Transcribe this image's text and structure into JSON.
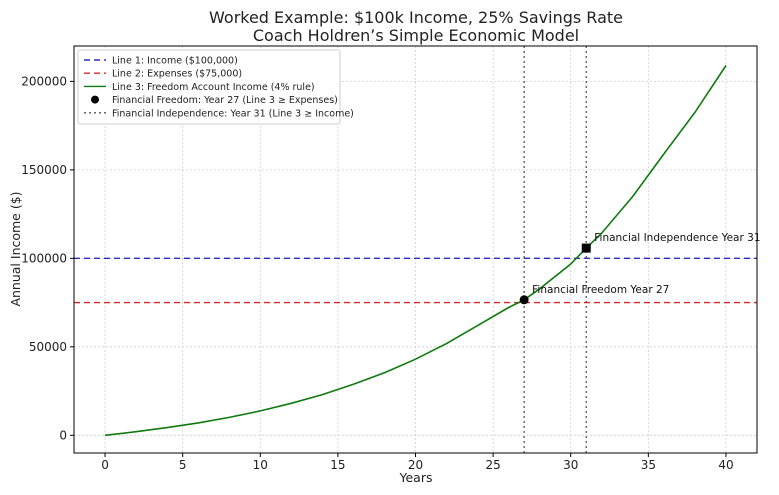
{
  "chart_data": {
    "type": "line",
    "title": "Worked Example: $100k Income, 25% Savings Rate",
    "subtitle": "Coach Holdren’s Simple Economic Model",
    "xlabel": "Years",
    "ylabel": "Annual Income ($)",
    "xlim": [
      -2,
      42
    ],
    "ylim": [
      -10000,
      220000
    ],
    "xticks": [
      0,
      5,
      10,
      15,
      20,
      25,
      30,
      35,
      40
    ],
    "yticks": [
      0,
      50000,
      100000,
      150000,
      200000
    ],
    "grid": true,
    "legend_position": "top-left",
    "series": [
      {
        "name": "Line 1: Income ($100,000)",
        "kind": "hline",
        "y": 100000,
        "color": "#2b2bc8",
        "style": "dashed"
      },
      {
        "name": "Line 2: Expenses ($75,000)",
        "kind": "hline",
        "y": 75000,
        "color": "#d62728",
        "style": "dashed"
      },
      {
        "name": "Line 3: Freedom Account Income (4% rule)",
        "kind": "line",
        "color": "#0f7a0f",
        "style": "solid",
        "x": [
          0,
          2,
          4,
          6,
          8,
          10,
          12,
          14,
          16,
          18,
          20,
          22,
          24,
          26,
          27,
          28,
          30,
          31,
          32,
          34,
          36,
          38,
          40
        ],
        "y": [
          0,
          2030,
          4350,
          7000,
          10100,
          13800,
          18100,
          23000,
          28800,
          35400,
          43000,
          51800,
          62000,
          72200,
          76600,
          82800,
          96800,
          105800,
          114300,
          135000,
          159000,
          182500,
          209000
        ]
      }
    ],
    "markers": [
      {
        "name": "Financial Freedom: Year 27 (Line 3 ≥ Expenses)",
        "shape": "circle",
        "x": 27,
        "y": 76600,
        "label": "Financial Freedom Year 27"
      },
      {
        "name": "Financial Independence: Year 31 (Line 3 ≥ Income)",
        "shape": "square",
        "x": 31,
        "y": 105800,
        "label": "Financial Independence Year 31"
      }
    ],
    "vlines": [
      {
        "x": 27,
        "color": "#555555",
        "style": "dotted"
      },
      {
        "x": 31,
        "color": "#555555",
        "style": "dotted"
      }
    ],
    "legend": [
      {
        "label": "Line 1: Income ($100,000)",
        "type": "line",
        "color": "#2b2bc8",
        "style": "dashed"
      },
      {
        "label": "Line 2: Expenses ($75,000)",
        "type": "line",
        "color": "#d62728",
        "style": "dashed"
      },
      {
        "label": "Line 3: Freedom Account Income (4% rule)",
        "type": "line",
        "color": "#0f7a0f",
        "style": "solid"
      },
      {
        "label": "Financial Freedom: Year 27 (Line 3 ≥ Expenses)",
        "type": "marker",
        "color": "#000000",
        "style": "circle"
      },
      {
        "label": "Financial Independence: Year 31 (Line 3 ≥ Income)",
        "type": "line",
        "color": "#555555",
        "style": "dotted"
      }
    ]
  }
}
